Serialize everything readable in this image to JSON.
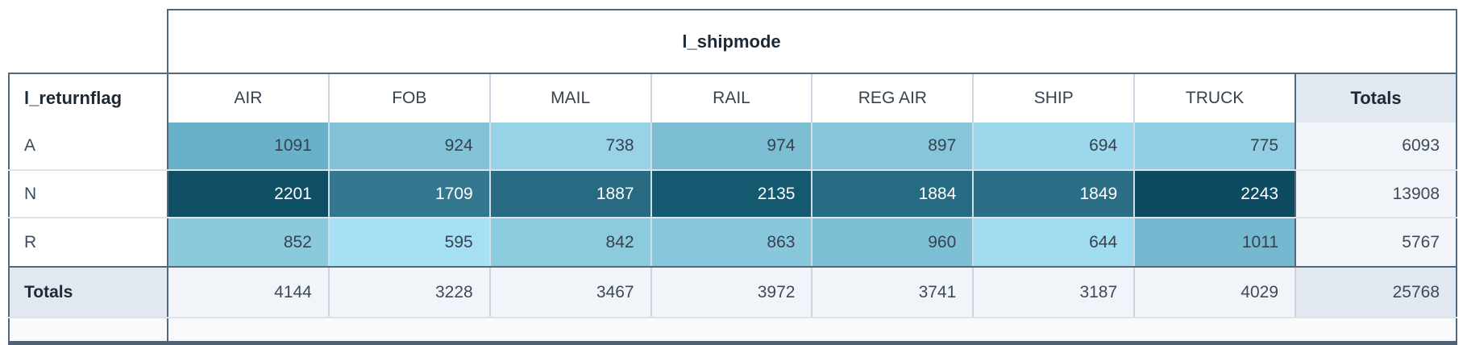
{
  "labels": {
    "totals": "Totals"
  },
  "chart_data": {
    "type": "heatmap",
    "title": "",
    "x_dimension": "l_shipmode",
    "y_dimension": "l_returnflag",
    "columns": [
      "AIR",
      "FOB",
      "MAIL",
      "RAIL",
      "REG AIR",
      "SHIP",
      "TRUCK"
    ],
    "rows": [
      "A",
      "N",
      "R"
    ],
    "values": [
      [
        1091,
        924,
        738,
        974,
        897,
        694,
        775
      ],
      [
        2201,
        1709,
        1887,
        2135,
        1884,
        1849,
        2243
      ],
      [
        852,
        595,
        842,
        863,
        960,
        644,
        1011
      ]
    ],
    "row_totals": [
      6093,
      13908,
      5767
    ],
    "col_totals": [
      4144,
      3228,
      3467,
      3972,
      3741,
      3187,
      4029
    ],
    "grand_total": 25768,
    "legend": "none",
    "color_scale": {
      "min_value": 595,
      "max_value": 2243,
      "min_color": "#a6e0f4",
      "max_color": "#0c4b61"
    }
  },
  "heat_colors": [
    [
      "#68b1c9",
      "#83c3d8",
      "#97d2e7",
      "#7bbdd3",
      "#86c6da",
      "#9cd7ec",
      "#91cee3"
    ],
    [
      "#0e4f66",
      "#34788f",
      "#276a81",
      "#145970",
      "#276b82",
      "#2b6e86",
      "#0c4b61"
    ],
    [
      "#8bc9dd",
      "#a6e0f4",
      "#8ccade",
      "#89c8dc",
      "#7dbfd4",
      "#a0dbef",
      "#74b9cf"
    ]
  ],
  "row_text_colors": [
    "#36424f",
    "#ffffff",
    "#36424f"
  ],
  "ui_colors": {
    "outer_border": "#52687c",
    "bottom_border": "#4e6377",
    "light_grid": "#cbd5e1",
    "totals_header_bg": "#e2e8f0",
    "totals_cell_bg": "#f1f5f9",
    "footer_strip_bg": "#f8fafc"
  }
}
